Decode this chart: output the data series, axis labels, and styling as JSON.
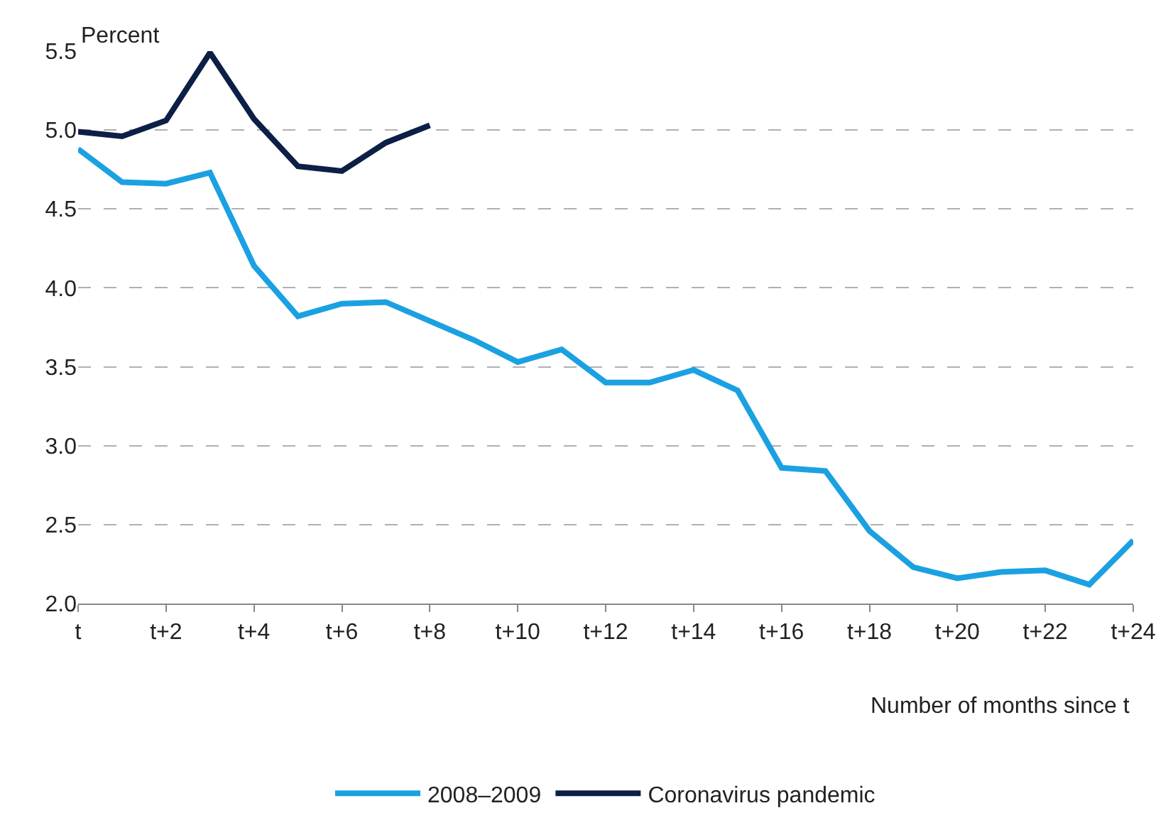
{
  "chart_data": {
    "type": "line",
    "ylabel": "Percent",
    "xlabel": "Number of months since t",
    "categories": [
      "t",
      null,
      "t+2",
      null,
      "t+4",
      null,
      "t+6",
      null,
      "t+8",
      null,
      "t+10",
      null,
      "t+12",
      null,
      "t+14",
      null,
      "t+16",
      null,
      "t+18",
      null,
      "t+20",
      null,
      "t+22",
      null,
      "t+24"
    ],
    "series": [
      {
        "name": "2008–2009",
        "color": "#1ba1e2",
        "values": [
          4.88,
          4.67,
          4.66,
          4.73,
          4.14,
          3.82,
          3.9,
          3.91,
          3.79,
          3.67,
          3.53,
          3.61,
          3.4,
          3.4,
          3.48,
          3.35,
          2.86,
          2.84,
          2.46,
          2.23,
          2.16,
          2.2,
          2.21,
          2.12,
          2.4
        ]
      },
      {
        "name": "Coronavirus pandemic",
        "color": "#0c1f45",
        "values": [
          4.99,
          4.96,
          5.06,
          5.49,
          5.07,
          4.77,
          4.74,
          4.92,
          5.03,
          null,
          null,
          null,
          null,
          null,
          null,
          null,
          null,
          null,
          null,
          null,
          null,
          null,
          null,
          null,
          null
        ]
      }
    ],
    "ylim": [
      2.0,
      5.5
    ],
    "yticks": [
      {
        "value": 2.0,
        "label": "2.0"
      },
      {
        "value": 2.5,
        "label": "2.5"
      },
      {
        "value": 3.0,
        "label": "3.0"
      },
      {
        "value": 3.5,
        "label": "3.5"
      },
      {
        "value": 4.0,
        "label": "4.0"
      },
      {
        "value": 4.5,
        "label": "4.5"
      },
      {
        "value": 5.0,
        "label": "5.0"
      },
      {
        "value": 5.5,
        "label": "5.5"
      }
    ],
    "grid": "y",
    "legend": "bottom",
    "marker": "none",
    "line_style": "solid"
  }
}
